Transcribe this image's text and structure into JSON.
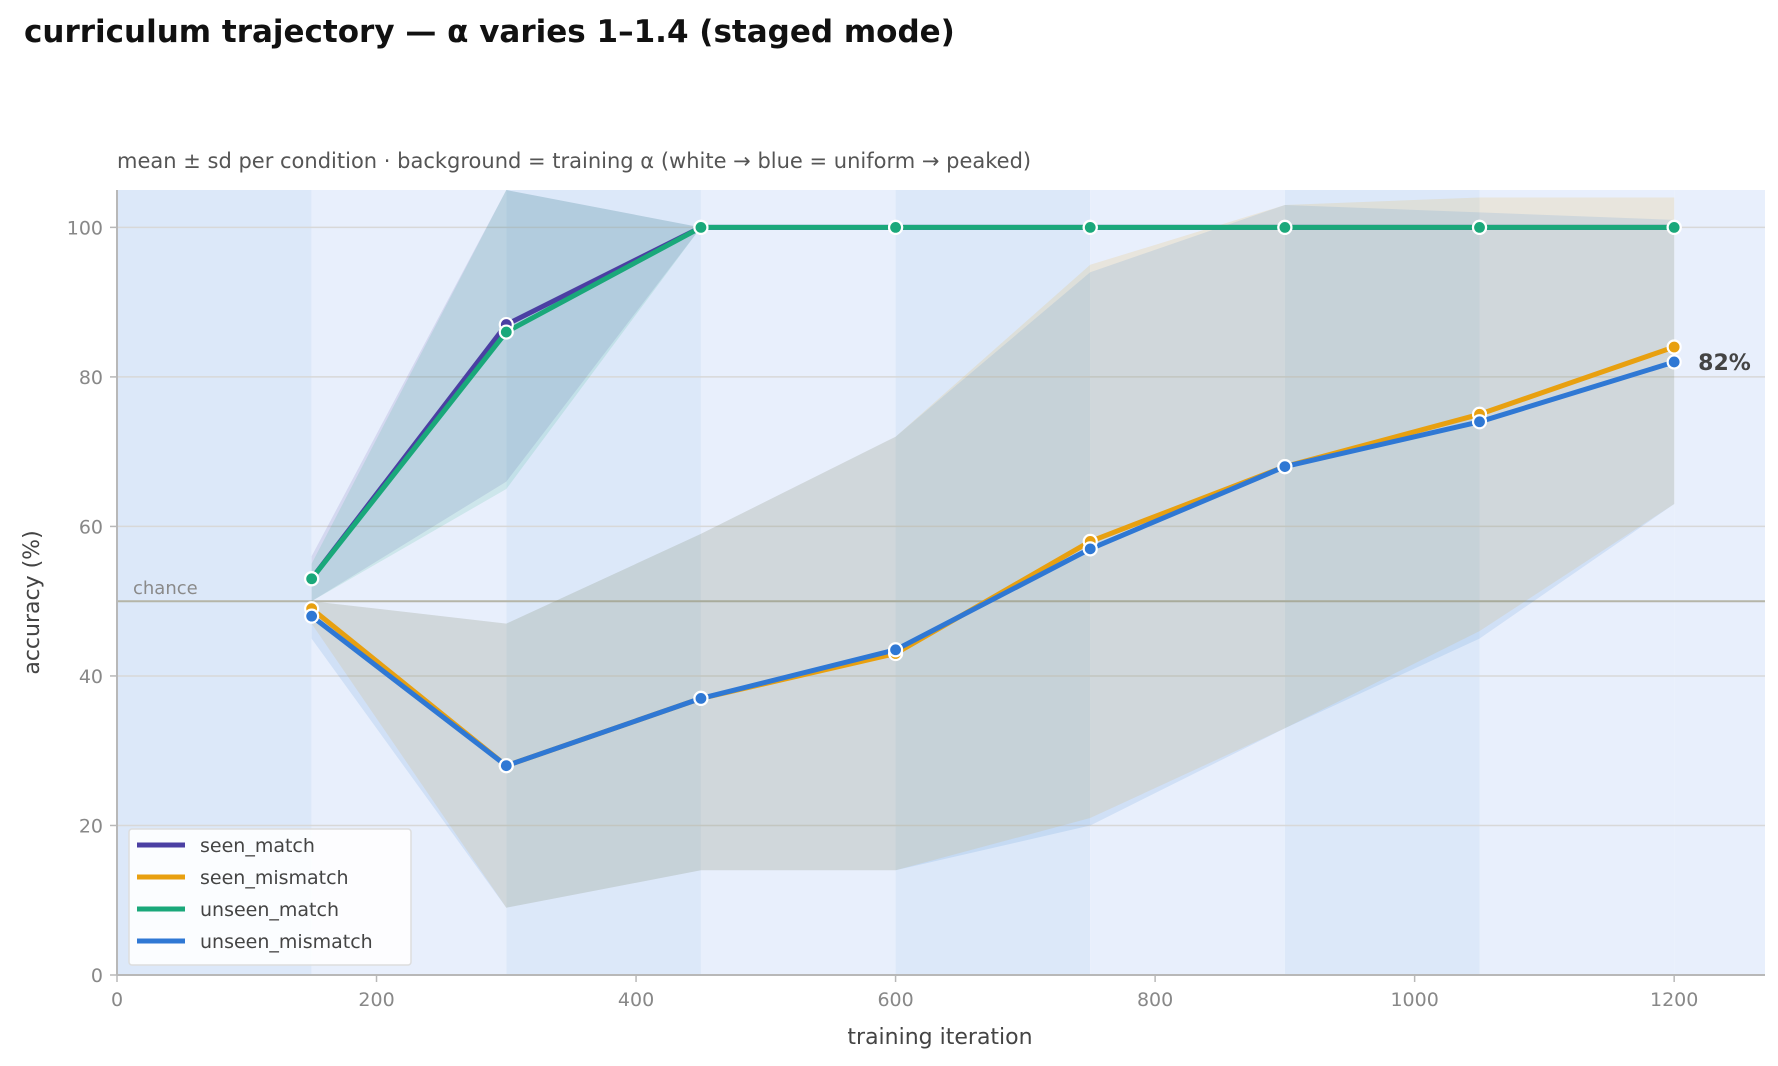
{
  "title": "curriculum trajectory — α varies 1–1.4 (staged mode)",
  "chart_data": {
    "type": "line",
    "subtitle": "mean ± sd per condition · background = training α (white → blue = uniform → peaked)",
    "xlabel": "training iteration",
    "ylabel": "accuracy (%)",
    "xlim": [
      0,
      1270
    ],
    "ylim": [
      0,
      105
    ],
    "xticks": [
      0,
      200,
      400,
      600,
      800,
      1000,
      1200
    ],
    "yticks": [
      0,
      20,
      40,
      60,
      80,
      100
    ],
    "grid": "horizontal",
    "legend_position": "lower-left",
    "reference_line": {
      "y": 50,
      "label": "chance"
    },
    "end_annotation": {
      "series": "unseen_mismatch",
      "text": "82%"
    },
    "x": [
      150,
      300,
      450,
      600,
      750,
      900,
      1050,
      1200
    ],
    "background_bands": [
      {
        "x0": 0,
        "x1": 150,
        "alpha_level": "peaked"
      },
      {
        "x0": 150,
        "x1": 300,
        "alpha_level": "uniform"
      },
      {
        "x0": 300,
        "x1": 450,
        "alpha_level": "peaked"
      },
      {
        "x0": 450,
        "x1": 600,
        "alpha_level": "uniform"
      },
      {
        "x0": 600,
        "x1": 750,
        "alpha_level": "peaked"
      },
      {
        "x0": 750,
        "x1": 900,
        "alpha_level": "uniform"
      },
      {
        "x0": 900,
        "x1": 1050,
        "alpha_level": "peaked"
      },
      {
        "x0": 1050,
        "x1": 1200,
        "alpha_level": "uniform"
      }
    ],
    "band_colors": {
      "peaked": "#dce8f9",
      "uniform": "#e8effc"
    },
    "series": [
      {
        "name": "seen_match",
        "color": "#4b3fa3",
        "values": [
          53,
          87,
          100,
          100,
          100,
          100,
          100,
          100
        ],
        "sd_upper": [
          56,
          108,
          100,
          100,
          100,
          100,
          100,
          100
        ],
        "sd_lower": [
          50,
          66,
          100,
          100,
          100,
          100,
          100,
          100
        ]
      },
      {
        "name": "seen_mismatch",
        "color": "#e8a010",
        "values": [
          49,
          28,
          37,
          43,
          58,
          68,
          75,
          84
        ],
        "sd_upper": [
          50,
          47,
          59,
          72,
          95,
          103,
          104,
          104
        ],
        "sd_lower": [
          47,
          9,
          14,
          14,
          21,
          33,
          46,
          63
        ]
      },
      {
        "name": "unseen_match",
        "color": "#1aa87a",
        "values": [
          53,
          86,
          100,
          100,
          100,
          100,
          100,
          100
        ],
        "sd_upper": [
          55,
          107,
          100,
          100,
          100,
          100,
          100,
          100
        ],
        "sd_lower": [
          50,
          65,
          100,
          100,
          100,
          100,
          100,
          100
        ]
      },
      {
        "name": "unseen_mismatch",
        "color": "#2f78d4",
        "values": [
          48,
          28,
          37,
          43.5,
          57,
          68,
          74,
          82
        ],
        "sd_upper": [
          50,
          47,
          59,
          72,
          94,
          103,
          102,
          101
        ],
        "sd_lower": [
          45,
          9,
          14,
          14,
          20,
          33,
          45,
          63
        ]
      }
    ]
  }
}
